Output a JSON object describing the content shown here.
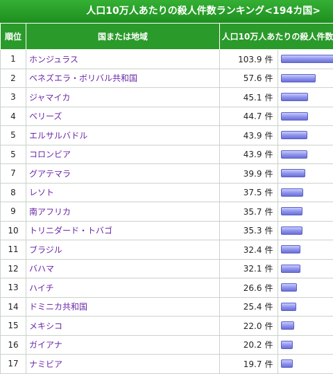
{
  "title": "人口10万人あたりの殺人件数ランキング<194カ国>",
  "columns": {
    "rank": "順位",
    "country": "国または地域",
    "value": "人口10万人あたりの殺人件数"
  },
  "unit": "件",
  "rows": [
    {
      "rank": "1",
      "country": "ホンジュラス",
      "value": "103.9"
    },
    {
      "rank": "2",
      "country": "ベネズエラ・ボリバル共和国",
      "value": "57.6"
    },
    {
      "rank": "3",
      "country": "ジャマイカ",
      "value": "45.1"
    },
    {
      "rank": "4",
      "country": "ベリーズ",
      "value": "44.7"
    },
    {
      "rank": "5",
      "country": "エルサルバドル",
      "value": "43.9"
    },
    {
      "rank": "5",
      "country": "コロンビア",
      "value": "43.9"
    },
    {
      "rank": "7",
      "country": "グアテマラ",
      "value": "39.9"
    },
    {
      "rank": "8",
      "country": "レソト",
      "value": "37.5"
    },
    {
      "rank": "9",
      "country": "南アフリカ",
      "value": "35.7"
    },
    {
      "rank": "10",
      "country": "トリニダード・トバゴ",
      "value": "35.3"
    },
    {
      "rank": "11",
      "country": "ブラジル",
      "value": "32.4"
    },
    {
      "rank": "12",
      "country": "バハマ",
      "value": "32.1"
    },
    {
      "rank": "13",
      "country": "ハイチ",
      "value": "26.6"
    },
    {
      "rank": "14",
      "country": "ドミニカ共和国",
      "value": "25.4"
    },
    {
      "rank": "15",
      "country": "メキシコ",
      "value": "22.0"
    },
    {
      "rank": "16",
      "country": "ガイアナ",
      "value": "20.2"
    },
    {
      "rank": "17",
      "country": "ナミビア",
      "value": "19.7"
    }
  ],
  "colors": {
    "header_green": "#2a9a2a",
    "link_purple": "#6a27a8",
    "bar_blue": "#8a8fe8"
  }
}
